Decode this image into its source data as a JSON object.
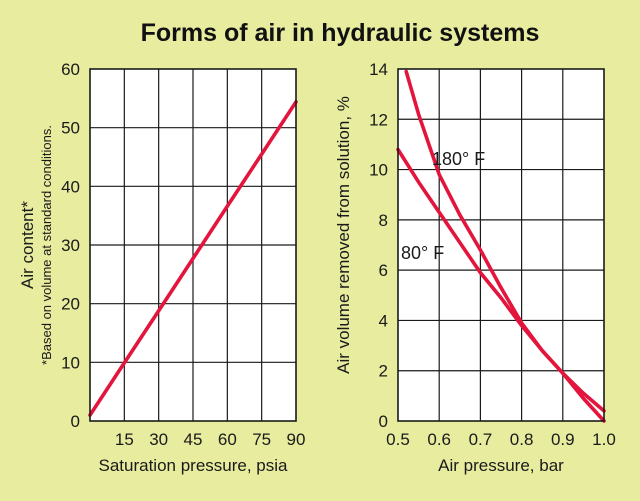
{
  "title": "Forms of air in hydraulic systems",
  "colors": {
    "background": "#e7ec9f",
    "plot_background": "#ffffff",
    "series": "#e3153d",
    "grid": "#1a1a1a"
  },
  "chart_data": [
    {
      "type": "line",
      "xlabel": "Saturation pressure, psia",
      "ylabel": "Air content*",
      "ylabel_note": "*Based on volume at standard conditions.",
      "xlim": [
        0,
        90
      ],
      "ylim": [
        0,
        60
      ],
      "xticks": [
        "15",
        "30",
        "45",
        "60",
        "75",
        "90"
      ],
      "yticks": [
        "0",
        "10",
        "20",
        "30",
        "40",
        "50",
        "60"
      ],
      "grid": true,
      "series": [
        {
          "x": [
            0,
            15,
            30,
            45,
            60,
            75,
            90
          ],
          "y": [
            1,
            9.9,
            18.8,
            27.7,
            36.6,
            45.5,
            54.4
          ]
        }
      ]
    },
    {
      "type": "line",
      "xlabel": "Air pressure, bar",
      "ylabel": "Air volume removed from solution, %",
      "xlim": [
        0.5,
        1.0
      ],
      "ylim": [
        0,
        14
      ],
      "xticks": [
        "0.5",
        "0.6",
        "0.7",
        "0.8",
        "0.9",
        "1.0"
      ],
      "yticks": [
        "0",
        "2",
        "4",
        "6",
        "8",
        "10",
        "12",
        "14"
      ],
      "grid": true,
      "series": [
        {
          "name": "180° F",
          "x": [
            0.52,
            0.55,
            0.6,
            0.65,
            0.7,
            0.75,
            0.8,
            0.85,
            0.9,
            0.95,
            1.0
          ],
          "y": [
            13.9,
            12.2,
            9.8,
            8.2,
            6.8,
            5.3,
            3.9,
            2.8,
            1.9,
            1.1,
            0.4
          ]
        },
        {
          "name": "80° F",
          "x": [
            0.5,
            0.55,
            0.6,
            0.65,
            0.7,
            0.75,
            0.8,
            0.85,
            0.9,
            0.95,
            1.0
          ],
          "y": [
            10.8,
            9.5,
            8.3,
            7.1,
            5.9,
            4.9,
            3.8,
            2.8,
            1.9,
            0.9,
            0.0
          ]
        }
      ]
    }
  ]
}
